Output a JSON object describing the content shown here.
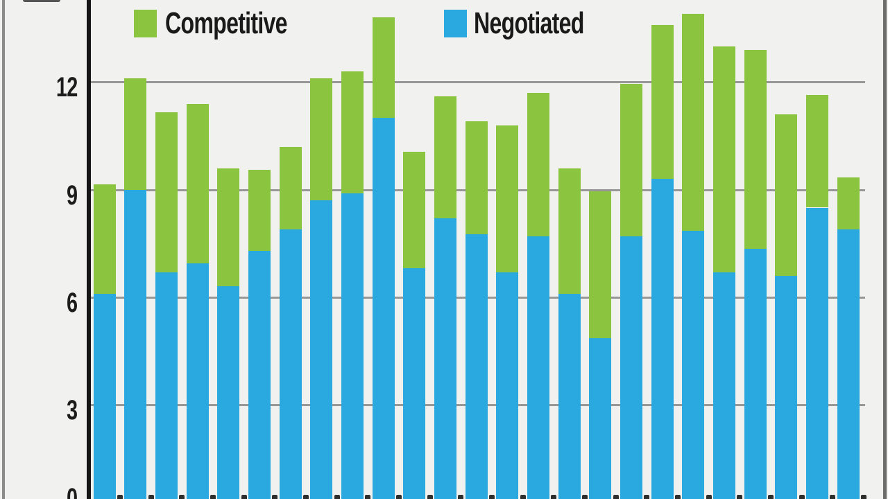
{
  "legend": {
    "items": [
      {
        "label": "Competitive",
        "color": "#8bc53f"
      },
      {
        "label": "Negotiated",
        "color": "#29a9e0"
      }
    ]
  },
  "y_axis": {
    "tick_labels": [
      "12",
      "9",
      "6",
      "3",
      "0"
    ]
  },
  "chart_data": {
    "type": "bar",
    "stacked": true,
    "title": "",
    "xlabel": "",
    "ylabel": "",
    "x_tick_labels_visible": false,
    "y_ticks": [
      0,
      3,
      6,
      9,
      12
    ],
    "ylim": [
      0,
      15
    ],
    "grid": true,
    "legend_position": "top",
    "bar_count": 25,
    "series": [
      {
        "name": "Negotiated",
        "color": "#29a9e0",
        "values": [
          6.1,
          9.0,
          6.7,
          6.95,
          6.3,
          7.3,
          7.9,
          8.7,
          8.9,
          11.0,
          6.8,
          8.2,
          7.75,
          6.7,
          7.7,
          6.1,
          4.85,
          7.7,
          9.3,
          7.85,
          6.7,
          7.35,
          6.6,
          8.5,
          7.9
        ]
      },
      {
        "name": "Competitive",
        "color": "#8bc53f",
        "values": [
          3.05,
          3.1,
          4.45,
          4.45,
          3.3,
          2.25,
          2.3,
          3.4,
          3.4,
          2.8,
          3.25,
          3.4,
          3.15,
          4.1,
          4.0,
          3.5,
          4.1,
          4.25,
          4.3,
          6.05,
          6.3,
          5.55,
          4.5,
          3.15,
          1.45
        ]
      }
    ],
    "totals": [
      9.15,
      12.1,
      11.15,
      11.4,
      9.6,
      9.55,
      10.2,
      12.1,
      12.3,
      13.8,
      10.05,
      11.6,
      10.9,
      10.8,
      11.7,
      9.6,
      8.95,
      11.95,
      13.6,
      13.9,
      13.0,
      12.9,
      11.1,
      11.65,
      9.35
    ]
  }
}
